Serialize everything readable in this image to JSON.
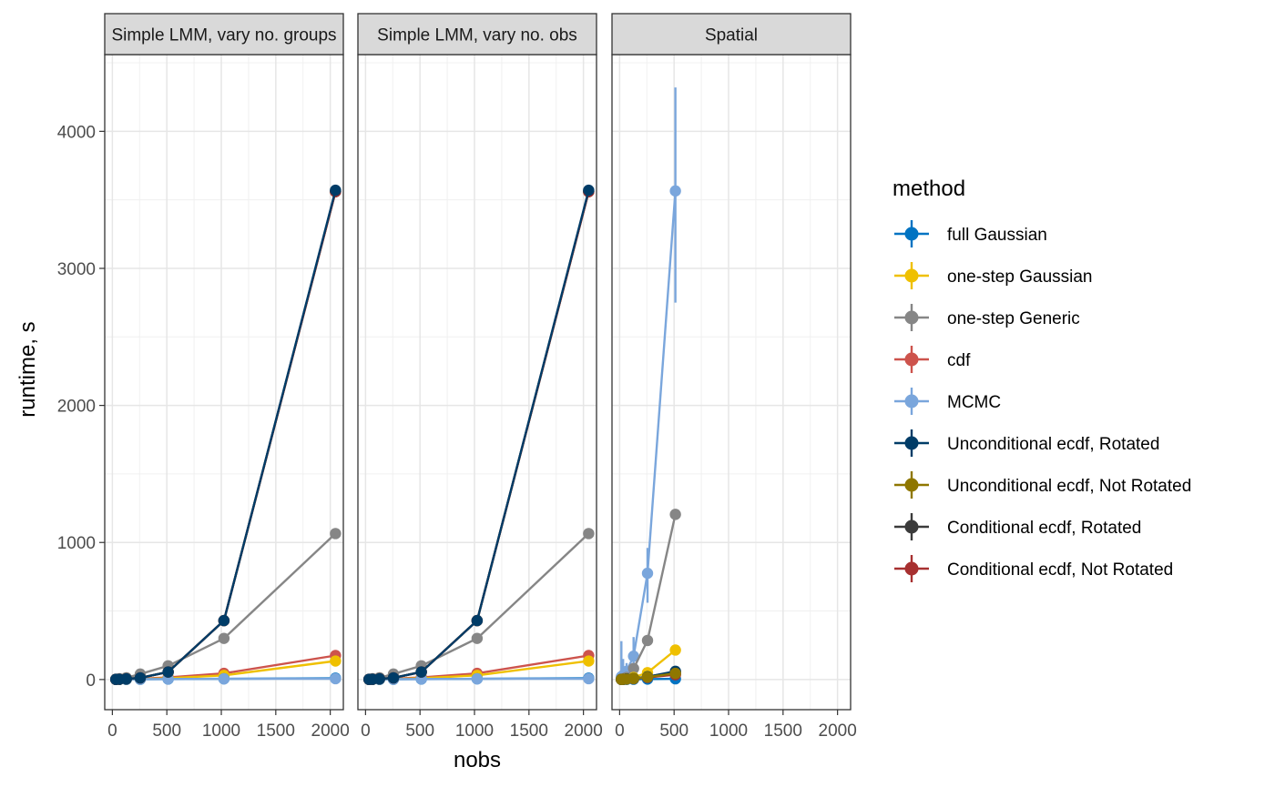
{
  "chart_data": {
    "type": "line",
    "xlabel": "nobs",
    "ylabel": "runtime, s",
    "xlim": [
      -70,
      2120
    ],
    "ylim": [
      -220,
      4560
    ],
    "x_ticks": [
      0,
      500,
      1000,
      1500,
      2000
    ],
    "y_ticks": [
      0,
      1000,
      2000,
      3000,
      4000
    ],
    "x_tick_labels": [
      "0",
      "500",
      "1000",
      "1500",
      "2000"
    ],
    "y_tick_labels": [
      "0",
      "1000",
      "2000",
      "3000",
      "4000"
    ],
    "grid": true,
    "legend": {
      "title": "method",
      "position": "right",
      "items": [
        {
          "name": "full Gaussian",
          "color": "#0073C2"
        },
        {
          "name": "one-step Gaussian",
          "color": "#EFC000"
        },
        {
          "name": "one-step Generic",
          "color": "#868686"
        },
        {
          "name": "cdf",
          "color": "#CD534C"
        },
        {
          "name": "MCMC",
          "color": "#7AA6DC"
        },
        {
          "name": "Unconditional ecdf, Rotated",
          "color": "#003C67"
        },
        {
          "name": "Unconditional ecdf, Not Rotated",
          "color": "#8F7700"
        },
        {
          "name": "Conditional ecdf, Rotated",
          "color": "#3B3B3B"
        },
        {
          "name": "Conditional ecdf, Not Rotated",
          "color": "#A73030"
        }
      ]
    },
    "panels": [
      {
        "title": "Simple LMM, vary no. groups",
        "series": [
          {
            "name": "one-step Generic",
            "color": "#868686",
            "x": [
              32,
              64,
              128,
              256,
              512,
              1024,
              2048
            ],
            "y": [
              3,
              6,
              13,
              40,
              100,
              300,
              1065
            ]
          },
          {
            "name": "cdf",
            "color": "#CD534C",
            "x": [
              32,
              64,
              128,
              256,
              512,
              1024,
              2048
            ],
            "y": [
              1,
              2,
              3,
              6,
              15,
              45,
              175
            ]
          },
          {
            "name": "one-step Gaussian",
            "color": "#EFC000",
            "x": [
              32,
              64,
              128,
              256,
              512,
              1024,
              2048
            ],
            "y": [
              1,
              1,
              2,
              4,
              10,
              30,
              135
            ]
          },
          {
            "name": "full Gaussian",
            "color": "#0073C2",
            "x": [
              32,
              64,
              128,
              256,
              512,
              1024,
              2048
            ],
            "y": [
              1,
              1,
              1,
              2,
              3,
              5,
              10
            ]
          },
          {
            "name": "MCMC",
            "color": "#7AA6DC",
            "x": [
              32,
              64,
              128,
              256,
              512,
              1024,
              2048
            ],
            "y": [
              2,
              2,
              3,
              3,
              4,
              5,
              6
            ]
          },
          {
            "name": "Unconditional ecdf, Not Rotated",
            "color": "#8F7700",
            "x": [
              32,
              64,
              128,
              256,
              512,
              1024,
              2048
            ],
            "y": [
              1,
              2,
              5,
              12,
              55,
              430,
              3560
            ]
          },
          {
            "name": "Conditional ecdf, Rotated",
            "color": "#3B3B3B",
            "x": [
              32,
              64,
              128,
              256,
              512,
              1024,
              2048
            ],
            "y": [
              1,
              2,
              5,
              12,
              55,
              430,
              3560
            ]
          },
          {
            "name": "Conditional ecdf, Not Rotated",
            "color": "#A73030",
            "x": [
              32,
              64,
              128,
              256,
              512,
              1024,
              2048
            ],
            "y": [
              1,
              2,
              5,
              12,
              55,
              430,
              3560
            ]
          },
          {
            "name": "Unconditional ecdf, Rotated",
            "color": "#003C67",
            "x": [
              32,
              64,
              128,
              256,
              512,
              1024,
              2048
            ],
            "y": [
              1,
              2,
              5,
              12,
              55,
              430,
              3570
            ]
          }
        ]
      },
      {
        "title": "Simple LMM, vary no. obs",
        "series": [
          {
            "name": "one-step Generic",
            "color": "#868686",
            "x": [
              32,
              64,
              128,
              256,
              512,
              1024,
              2048
            ],
            "y": [
              3,
              6,
              13,
              40,
              100,
              300,
              1065
            ]
          },
          {
            "name": "cdf",
            "color": "#CD534C",
            "x": [
              32,
              64,
              128,
              256,
              512,
              1024,
              2048
            ],
            "y": [
              1,
              2,
              3,
              6,
              15,
              45,
              175
            ]
          },
          {
            "name": "one-step Gaussian",
            "color": "#EFC000",
            "x": [
              32,
              64,
              128,
              256,
              512,
              1024,
              2048
            ],
            "y": [
              1,
              1,
              2,
              4,
              10,
              30,
              135
            ]
          },
          {
            "name": "full Gaussian",
            "color": "#0073C2",
            "x": [
              32,
              64,
              128,
              256,
              512,
              1024,
              2048
            ],
            "y": [
              1,
              1,
              1,
              2,
              3,
              5,
              10
            ]
          },
          {
            "name": "MCMC",
            "color": "#7AA6DC",
            "x": [
              32,
              64,
              128,
              256,
              512,
              1024,
              2048
            ],
            "y": [
              2,
              2,
              3,
              3,
              4,
              5,
              6
            ]
          },
          {
            "name": "Unconditional ecdf, Not Rotated",
            "color": "#8F7700",
            "x": [
              32,
              64,
              128,
              256,
              512,
              1024,
              2048
            ],
            "y": [
              1,
              2,
              5,
              12,
              55,
              430,
              3560
            ]
          },
          {
            "name": "Conditional ecdf, Rotated",
            "color": "#3B3B3B",
            "x": [
              32,
              64,
              128,
              256,
              512,
              1024,
              2048
            ],
            "y": [
              1,
              2,
              5,
              12,
              55,
              430,
              3560
            ]
          },
          {
            "name": "Conditional ecdf, Not Rotated",
            "color": "#A73030",
            "x": [
              32,
              64,
              128,
              256,
              512,
              1024,
              2048
            ],
            "y": [
              1,
              2,
              5,
              12,
              55,
              430,
              3560
            ]
          },
          {
            "name": "Unconditional ecdf, Rotated",
            "color": "#003C67",
            "x": [
              32,
              64,
              128,
              256,
              512,
              1024,
              2048
            ],
            "y": [
              1,
              2,
              5,
              12,
              55,
              430,
              3570
            ]
          }
        ]
      },
      {
        "title": "Spatial",
        "series": [
          {
            "name": "MCMC",
            "color": "#7AA6DC",
            "x": [
              16,
              32,
              64,
              128,
              256,
              512
            ],
            "y": [
              20,
              30,
              60,
              170,
              775,
              3565
            ],
            "err_low": [
              0,
              0,
              0,
              80,
              560,
              2750
            ],
            "err_high": [
              280,
              150,
              120,
              310,
              960,
              4320
            ]
          },
          {
            "name": "one-step Generic",
            "color": "#868686",
            "x": [
              16,
              32,
              64,
              128,
              256,
              512
            ],
            "y": [
              3,
              5,
              15,
              80,
              285,
              1205
            ]
          },
          {
            "name": "one-step Gaussian",
            "color": "#EFC000",
            "x": [
              16,
              32,
              64,
              128,
              256,
              512
            ],
            "y": [
              1,
              2,
              5,
              15,
              50,
              215
            ]
          },
          {
            "name": "cdf",
            "color": "#CD534C",
            "x": [
              16,
              32,
              64,
              128,
              256,
              512
            ],
            "y": [
              1,
              2,
              3,
              6,
              15,
              40
            ]
          },
          {
            "name": "full Gaussian",
            "color": "#0073C2",
            "x": [
              16,
              32,
              64,
              128,
              256,
              512
            ],
            "y": [
              1,
              1,
              1,
              2,
              3,
              5
            ]
          },
          {
            "name": "Conditional ecdf, Not Rotated",
            "color": "#A73030",
            "x": [
              16,
              32,
              64,
              128,
              256,
              512
            ],
            "y": [
              1,
              2,
              3,
              6,
              15,
              35
            ]
          },
          {
            "name": "Conditional ecdf, Rotated",
            "color": "#3B3B3B",
            "x": [
              16,
              32,
              64,
              128,
              256,
              512
            ],
            "y": [
              1,
              2,
              4,
              8,
              20,
              55
            ]
          },
          {
            "name": "Unconditional ecdf, Rotated",
            "color": "#003C67",
            "x": [
              16,
              32,
              64,
              128,
              256,
              512
            ],
            "y": [
              1,
              2,
              4,
              8,
              20,
              60
            ]
          },
          {
            "name": "Unconditional ecdf, Not Rotated",
            "color": "#8F7700",
            "x": [
              16,
              32,
              64,
              128,
              256,
              512
            ],
            "y": [
              1,
              2,
              3,
              7,
              18,
              45
            ]
          }
        ]
      }
    ]
  }
}
